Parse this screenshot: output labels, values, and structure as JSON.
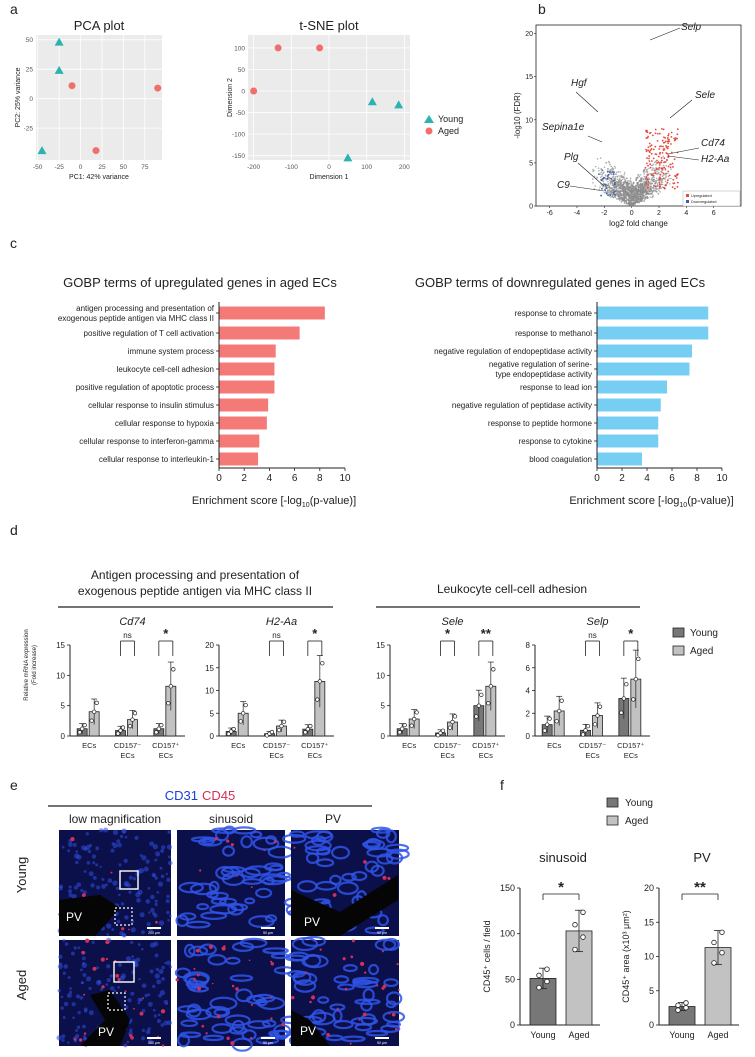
{
  "panels": {
    "a": "a",
    "b": "b",
    "c": "c",
    "d": "d",
    "e": "e",
    "f": "f"
  },
  "colors": {
    "young": "#2bb3b3",
    "aged": "#ef6f6a",
    "up_bar": "#f47a78",
    "down_bar": "#76cff3",
    "volcano_up": "#e8493e",
    "volcano_down": "#3a5fb0",
    "volcano_ns": "#8c8c8c",
    "young_bar": "#777777",
    "aged_bar": "#c2c2c2",
    "cd31": "#1a3fd6",
    "cd45": "#d0305a"
  },
  "pca": {
    "title": "PCA plot",
    "xlabel": "PC1: 42% variance",
    "ylabel": "PC2: 25% variance",
    "xticks": [
      "-50",
      "-25",
      "0",
      "25",
      "50",
      "75"
    ],
    "yticks": [
      "50",
      "25",
      "0",
      "-25"
    ],
    "chart_data": {
      "type": "scatter",
      "xlim": [
        -52,
        95
      ],
      "ylim": [
        -52,
        54
      ],
      "series": [
        {
          "name": "Young",
          "shape": "triangle",
          "points": [
            [
              -25,
              48
            ],
            [
              -25,
              24
            ],
            [
              -45,
              -44
            ]
          ]
        },
        {
          "name": "Aged",
          "shape": "circle",
          "points": [
            [
              -10,
              11
            ],
            [
              90,
              9
            ],
            [
              18,
              -44
            ]
          ]
        }
      ]
    }
  },
  "tsne": {
    "title": "t-SNE plot",
    "xlabel": "Dimension 1",
    "ylabel": "Dimension 2",
    "xticks": [
      "-200",
      "-100",
      "0",
      "100",
      "200"
    ],
    "yticks": [
      "100",
      "50",
      "0",
      "-50",
      "-100",
      "-150"
    ],
    "chart_data": {
      "type": "scatter",
      "xlim": [
        -215,
        215
      ],
      "ylim": [
        -160,
        130
      ],
      "series": [
        {
          "name": "Young",
          "shape": "triangle",
          "points": [
            [
              115,
              -25
            ],
            [
              185,
              -32
            ],
            [
              50,
              -155
            ]
          ]
        },
        {
          "name": "Aged",
          "shape": "circle",
          "points": [
            [
              -135,
              100
            ],
            [
              -25,
              100
            ],
            [
              -200,
              0
            ]
          ]
        }
      ]
    }
  },
  "legend_a": {
    "young": "Young",
    "aged": "Aged"
  },
  "volcano": {
    "xlabel": "log2 fold change",
    "ylabel": "-log10 (FDR)",
    "xticks": [
      "-6",
      "-4",
      "-2",
      "0",
      "2",
      "4",
      "6"
    ],
    "yticks": [
      "0",
      "5",
      "10",
      "15",
      "20"
    ],
    "legend": {
      "up": "Upregulated",
      "down": "Downregulated"
    },
    "chart_data": {
      "type": "scatter",
      "xlim": [
        -7,
        8
      ],
      "ylim": [
        0,
        21
      ],
      "labels": [
        {
          "gene": "Selp",
          "x": 5.0,
          "y": 19.0
        },
        {
          "gene": "Hgf",
          "x": -2.3,
          "y": 17.0
        },
        {
          "gene": "Sele",
          "x": 5.2,
          "y": 15.5
        },
        {
          "gene": "Sepina1e",
          "x": -2.0,
          "y": 13.2
        },
        {
          "gene": "Cd74",
          "x": 5.0,
          "y": 12.5
        },
        {
          "gene": "H2-Aa",
          "x": 5.0,
          "y": 10.5
        },
        {
          "gene": "Plg",
          "x": -2.2,
          "y": 7.5
        },
        {
          "gene": "C9",
          "x": -2.0,
          "y": 4.0
        }
      ]
    }
  },
  "c_up": {
    "title": "GOBP terms of upregulated genes in aged ECs",
    "xlabel": "Enrichment score [-log",
    "xlabel_sub": "10",
    "xlabel_end": "(p-value)]",
    "xticks": [
      "0",
      "2",
      "4",
      "6",
      "8",
      "10"
    ],
    "chart_data": {
      "type": "bar",
      "xlim": [
        0,
        10
      ],
      "categories": [
        "antigen processing and presentation of|exogenous peptide antigen via MHC class II",
        "positive regulation of T cell activation",
        "immune system process",
        "leukocyte cell-cell adhesion",
        "positive regulation of apoptotic process",
        "cellular response to insulin stimulus",
        "cellular response to hypoxia",
        "cellular response to interferon-gamma",
        "cellular response to interleukin-1"
      ],
      "values": [
        8.4,
        6.4,
        4.5,
        4.4,
        4.4,
        3.9,
        3.8,
        3.2,
        3.1
      ]
    }
  },
  "c_down": {
    "title": "GOBP terms of downregulated genes in aged ECs",
    "xlabel": "Enrichment score [-log",
    "xlabel_sub": "10",
    "xlabel_end": "(p-value)]",
    "xticks": [
      "0",
      "2",
      "4",
      "6",
      "8",
      "10"
    ],
    "chart_data": {
      "type": "bar",
      "xlim": [
        0,
        10
      ],
      "categories": [
        "response to chromate",
        "response to methanol",
        "negative regulation of endopeptidase activity",
        "negative regulation of serine-|type endopeptidase activity",
        "response to lead ion",
        "negative regulation of peptidase activity",
        "response to peptide hormone",
        "response to cytokine",
        "blood coagulation"
      ],
      "values": [
        8.9,
        8.9,
        7.6,
        7.4,
        5.6,
        5.1,
        4.9,
        4.9,
        3.6
      ]
    }
  },
  "d": {
    "group1_title_l1": "Antigen processing and presentation of",
    "group1_title_l2": "exogenous peptide antigen via MHC class II",
    "group2_title": "Leukocyte cell-cell adhesion",
    "ylabel_l1": "Relative mRNA expression",
    "ylabel_l2": "(Fold increase)",
    "legend": {
      "young": "Young",
      "aged": "Aged"
    },
    "chart_data": [
      {
        "type": "bar",
        "gene": "Cd74",
        "ylim": [
          0,
          15
        ],
        "yticks": [
          "0",
          "5",
          "10",
          "15"
        ],
        "categories": [
          "ECs",
          "CD157⁻ ECs",
          "CD157⁺ ECs"
        ],
        "series": [
          {
            "name": "Young",
            "values": [
              1.2,
              0.9,
              1.2
            ]
          },
          {
            "name": "Aged",
            "values": [
              4.0,
              2.7,
              8.2
            ]
          }
        ],
        "sig": [
          "ns",
          "*"
        ]
      },
      {
        "type": "bar",
        "gene": "H2-Aa",
        "ylim": [
          0,
          20
        ],
        "yticks": [
          "0",
          "5",
          "10",
          "15",
          "20"
        ],
        "categories": [
          "ECs",
          "CD157⁻ ECs",
          "CD157⁺ ECs"
        ],
        "series": [
          {
            "name": "Young",
            "values": [
              1.0,
              0.5,
              1.5
            ]
          },
          {
            "name": "Aged",
            "values": [
              5.0,
              2.2,
              12.0
            ]
          }
        ],
        "sig": [
          "ns",
          "*"
        ]
      },
      {
        "type": "bar",
        "gene": "Sele",
        "ylim": [
          0,
          15
        ],
        "yticks": [
          "0",
          "5",
          "10",
          "15"
        ],
        "categories": [
          "ECs",
          "CD157⁻ ECs",
          "CD157⁺ ECs"
        ],
        "series": [
          {
            "name": "Young",
            "values": [
              1.2,
              0.5,
              5.0
            ]
          },
          {
            "name": "Aged",
            "values": [
              2.8,
              2.3,
              8.2
            ]
          }
        ],
        "sig": [
          "*",
          "**"
        ]
      },
      {
        "type": "bar",
        "gene": "Selp",
        "ylim": [
          0,
          8
        ],
        "yticks": [
          "0",
          "2",
          "4",
          "6",
          "8"
        ],
        "categories": [
          "ECs",
          "CD157⁻ ECs",
          "CD157⁺ ECs"
        ],
        "series": [
          {
            "name": "Young",
            "values": [
              1.0,
              0.5,
              3.3
            ]
          },
          {
            "name": "Aged",
            "values": [
              2.2,
              1.8,
              5.0
            ]
          }
        ],
        "sig": [
          "ns",
          "*"
        ]
      }
    ]
  },
  "e": {
    "stain1": "CD31",
    "stain2": "CD45",
    "col1": "low magnification",
    "col2": "sinusoid",
    "col3": "PV",
    "row1": "Young",
    "row2": "Aged",
    "pv": "PV",
    "scale1": "200 μm",
    "scale2": "50 μm"
  },
  "f": {
    "legend": {
      "young": "Young",
      "aged": "Aged"
    },
    "chart_data": [
      {
        "type": "bar",
        "title": "sinusoid",
        "ylabel": "CD45⁺ cells / field",
        "ylim": [
          0,
          150
        ],
        "yticks": [
          "0",
          "50",
          "100",
          "150"
        ],
        "categories": [
          "Young",
          "Aged"
        ],
        "values": [
          51,
          103
        ],
        "sig": "*"
      },
      {
        "type": "bar",
        "title": "PV",
        "ylabel": "CD45⁺ area (x10³ μm²)",
        "ylim": [
          0,
          20
        ],
        "yticks": [
          "0",
          "5",
          "10",
          "15",
          "20"
        ],
        "categories": [
          "Young",
          "Aged"
        ],
        "values": [
          2.7,
          11.3
        ],
        "sig": "**"
      }
    ]
  }
}
